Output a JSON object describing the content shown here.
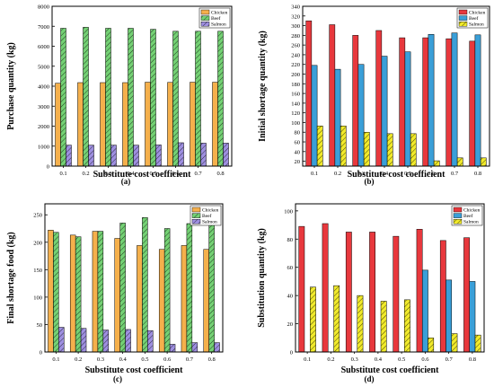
{
  "figure": {
    "background": "#ffffff",
    "axis_color": "#000000"
  },
  "chart_data": [
    {
      "id": "a",
      "panel_label": "(a)",
      "type": "bar",
      "xlabel": "Substitute cost coefficient",
      "ylabel": "Purchase quantity (kg)",
      "categories": [
        "0.1",
        "0.2",
        "0.3",
        "0.4",
        "0.5",
        "0.6",
        "0.7",
        "0.8"
      ],
      "ylim": [
        0,
        8000
      ],
      "yticks": [
        "0",
        "1000",
        "2000",
        "3000",
        "4000",
        "5000",
        "6000",
        "7000",
        "8000"
      ],
      "legend_position": "top-right",
      "series": [
        {
          "name": "Chicken",
          "color": "#f5b04c",
          "pattern": "solid",
          "values": [
            4150,
            4180,
            4180,
            4180,
            4200,
            4190,
            4200,
            4200
          ]
        },
        {
          "name": "Beef",
          "color": "#74d174",
          "pattern": "hatch",
          "values": [
            6900,
            6950,
            6900,
            6900,
            6850,
            6750,
            6750,
            6750
          ]
        },
        {
          "name": "Salmon",
          "color": "#9e8fe0",
          "pattern": "hatch",
          "values": [
            1050,
            1050,
            1050,
            1050,
            1060,
            1170,
            1150,
            1150
          ]
        }
      ]
    },
    {
      "id": "b",
      "panel_label": "(b)",
      "type": "bar",
      "xlabel": "Substitute cost coefficient",
      "ylabel": "Initial shortage quantity (kg)",
      "categories": [
        "0.1",
        "0.2",
        "0.3",
        "0.4",
        "0.5",
        "0.6",
        "0.7",
        "0.8"
      ],
      "ylim": [
        10,
        340
      ],
      "yticks": [
        "20",
        "40",
        "60",
        "80",
        "100",
        "120",
        "140",
        "160",
        "180",
        "200",
        "220",
        "240",
        "260",
        "280",
        "300",
        "320",
        "340"
      ],
      "legend_position": "top-right",
      "series": [
        {
          "name": "Chicken",
          "color": "#e8383d",
          "pattern": "solid",
          "values": [
            310,
            302,
            280,
            290,
            275,
            275,
            273,
            268
          ]
        },
        {
          "name": "Beef",
          "color": "#3a9fd8",
          "pattern": "solid",
          "values": [
            218,
            210,
            220,
            237,
            246,
            282,
            285,
            281
          ]
        },
        {
          "name": "Salmon",
          "color": "#f1ea2a",
          "pattern": "hatch",
          "values": [
            93,
            93,
            80,
            77,
            77,
            21,
            27,
            27
          ]
        }
      ]
    },
    {
      "id": "c",
      "panel_label": "(c)",
      "type": "bar",
      "xlabel": "Substitute cost coefficient",
      "ylabel": "Final shortage food (kg)",
      "categories": [
        "0.1",
        "0.2",
        "0.3",
        "0.4",
        "0.5",
        "0.6",
        "0.7",
        "0.8"
      ],
      "ylim": [
        0,
        270
      ],
      "yticks": [
        "0",
        "50",
        "100",
        "150",
        "200",
        "250"
      ],
      "legend_position": "top-right",
      "series": [
        {
          "name": "Chicken",
          "color": "#f5b04c",
          "pattern": "solid",
          "values": [
            222,
            213,
            220,
            207,
            194,
            187,
            194,
            187
          ]
        },
        {
          "name": "Beef",
          "color": "#74d174",
          "pattern": "hatch",
          "values": [
            218,
            210,
            220,
            235,
            245,
            225,
            234,
            231
          ]
        },
        {
          "name": "Salmon",
          "color": "#9e8fe0",
          "pattern": "hatch",
          "values": [
            45,
            43,
            40,
            41,
            39,
            14,
            17,
            17
          ]
        }
      ]
    },
    {
      "id": "d",
      "panel_label": "(d)",
      "type": "bar",
      "xlabel": "Substitute cost coefficient",
      "ylabel": "Substitution quantity (kg)",
      "categories": [
        "0.1",
        "0.2",
        "0.3",
        "0.4",
        "0.5",
        "0.6",
        "0.7",
        "0.8"
      ],
      "ylim": [
        0,
        105
      ],
      "yticks": [
        "0",
        "20",
        "40",
        "60",
        "80",
        "100"
      ],
      "legend_position": "top-right",
      "series": [
        {
          "name": "Chicken",
          "color": "#e8383d",
          "pattern": "solid",
          "values": [
            89,
            91,
            85,
            85,
            82,
            87,
            79,
            81
          ]
        },
        {
          "name": "Beef",
          "color": "#3a9fd8",
          "pattern": "solid",
          "values": [
            0,
            0,
            0,
            0,
            0,
            58,
            51,
            50
          ]
        },
        {
          "name": "Salmon",
          "color": "#f1ea2a",
          "pattern": "hatch",
          "values": [
            46,
            47,
            40,
            36,
            37,
            10,
            13,
            12
          ]
        }
      ]
    }
  ]
}
